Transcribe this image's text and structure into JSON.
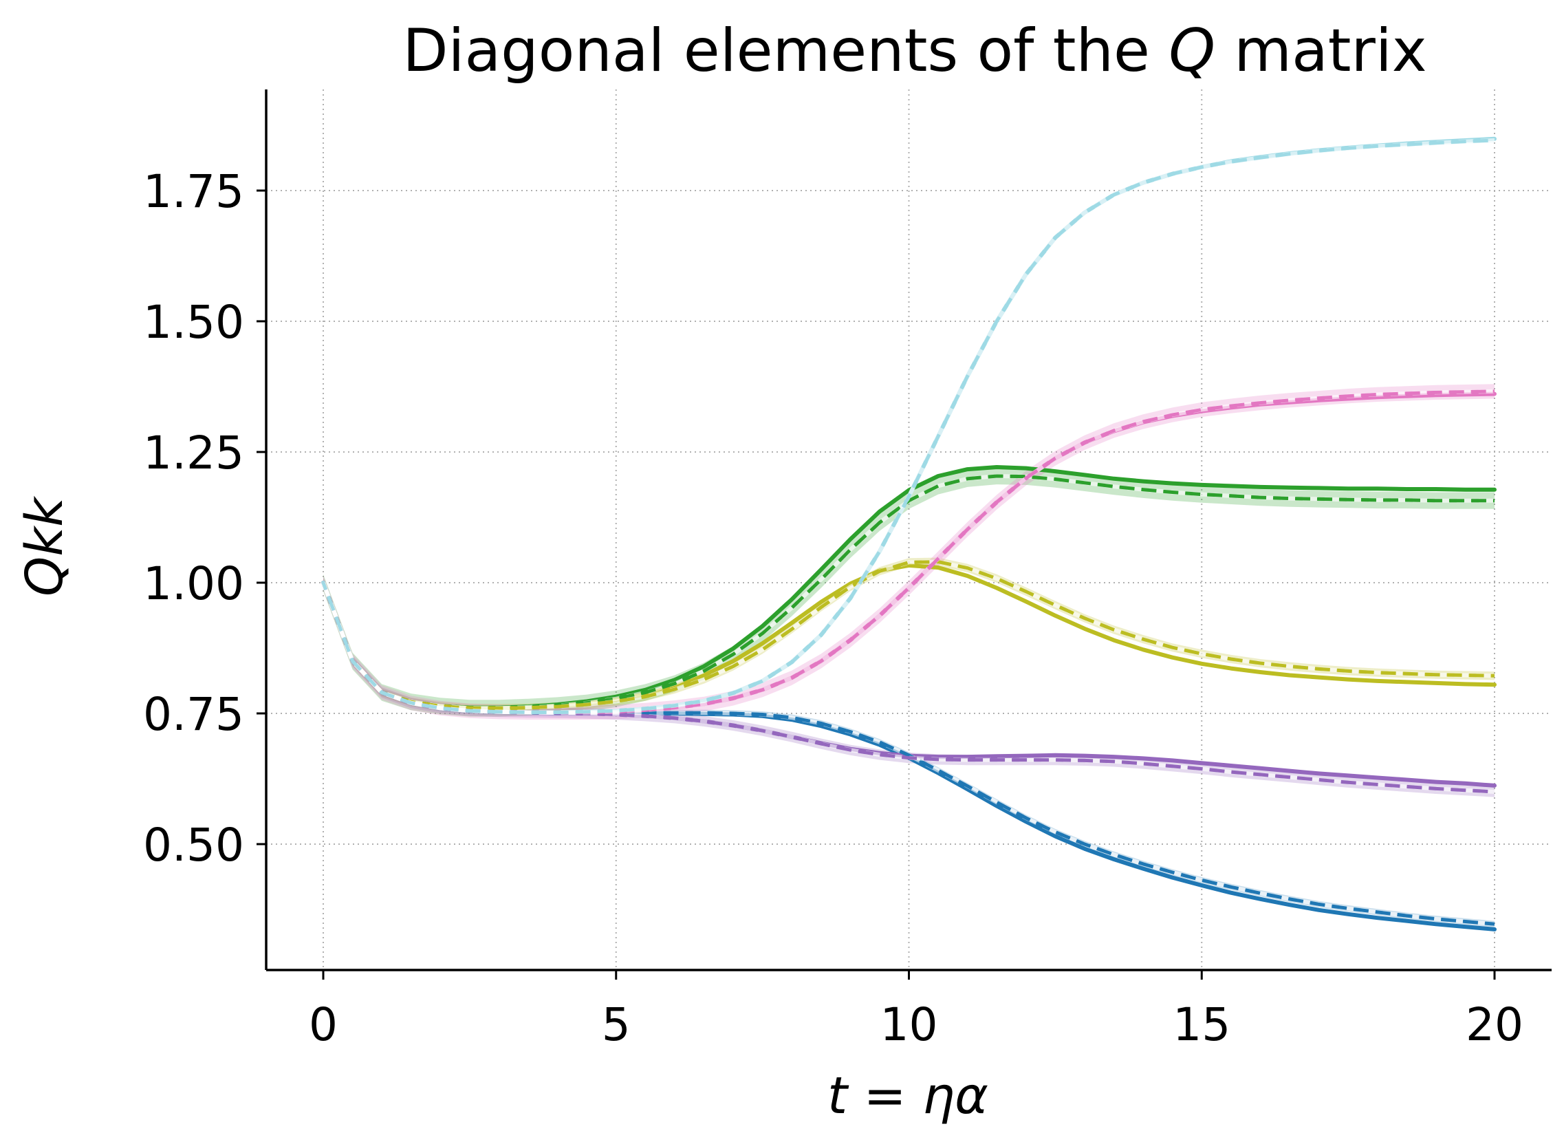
{
  "chart_data": {
    "type": "line",
    "title": "Diagonal elements of the Q matrix",
    "title_parts": [
      "Diagonal elements of the ",
      "Q",
      " matrix"
    ],
    "xlabel": "t = ηα",
    "ylabel": "Qkk",
    "xlim": [
      -1,
      21
    ],
    "ylim": [
      0.31,
      1.93
    ],
    "x_ticks": [
      0,
      5,
      10,
      15,
      20
    ],
    "x_tick_labels": [
      "0",
      "5",
      "10",
      "15",
      "20"
    ],
    "y_ticks": [
      0.5,
      0.75,
      1.0,
      1.25,
      1.5,
      1.75
    ],
    "y_tick_labels": [
      "0.50",
      "0.75",
      "1.00",
      "1.25",
      "1.50",
      "1.75"
    ],
    "grid": true,
    "grid_style": "dotted",
    "legend": false,
    "x": [
      0,
      0.5,
      1,
      1.5,
      2,
      2.5,
      3,
      3.5,
      4,
      4.5,
      5,
      5.5,
      6,
      6.5,
      7,
      7.5,
      8,
      8.5,
      9,
      9.5,
      10,
      10.5,
      11,
      11.5,
      12,
      12.5,
      13,
      13.5,
      14,
      14.5,
      15,
      15.5,
      16,
      16.5,
      17,
      17.5,
      18,
      18.5,
      19,
      19.5,
      20
    ],
    "series": [
      {
        "color": "#1f77b4",
        "solid": [
          1.0,
          0.85,
          0.79,
          0.77,
          0.76,
          0.755,
          0.753,
          0.752,
          0.751,
          0.751,
          0.75,
          0.75,
          0.75,
          0.749,
          0.748,
          0.745,
          0.738,
          0.726,
          0.71,
          0.69,
          0.665,
          0.636,
          0.605,
          0.573,
          0.543,
          0.515,
          0.491,
          0.471,
          0.453,
          0.436,
          0.421,
          0.407,
          0.395,
          0.384,
          0.374,
          0.366,
          0.359,
          0.353,
          0.347,
          0.342,
          0.337
        ],
        "dashed": [
          1.0,
          0.85,
          0.79,
          0.77,
          0.76,
          0.755,
          0.753,
          0.752,
          0.751,
          0.751,
          0.751,
          0.751,
          0.751,
          0.751,
          0.75,
          0.748,
          0.742,
          0.731,
          0.715,
          0.695,
          0.67,
          0.641,
          0.611,
          0.58,
          0.55,
          0.523,
          0.5,
          0.48,
          0.462,
          0.446,
          0.431,
          0.418,
          0.406,
          0.395,
          0.385,
          0.377,
          0.37,
          0.363,
          0.357,
          0.352,
          0.347
        ],
        "band": 0.006
      },
      {
        "color": "#2ca02c",
        "solid": [
          1.0,
          0.85,
          0.79,
          0.772,
          0.764,
          0.761,
          0.761,
          0.763,
          0.767,
          0.773,
          0.782,
          0.795,
          0.814,
          0.84,
          0.874,
          0.917,
          0.968,
          1.025,
          1.083,
          1.136,
          1.177,
          1.204,
          1.217,
          1.221,
          1.219,
          1.213,
          1.206,
          1.199,
          1.194,
          1.19,
          1.187,
          1.185,
          1.183,
          1.182,
          1.181,
          1.18,
          1.18,
          1.179,
          1.179,
          1.178,
          1.178
        ],
        "dashed": [
          1.0,
          0.85,
          0.79,
          0.772,
          0.764,
          0.76,
          0.76,
          0.762,
          0.765,
          0.77,
          0.778,
          0.79,
          0.807,
          0.831,
          0.863,
          0.903,
          0.952,
          1.006,
          1.063,
          1.115,
          1.157,
          1.185,
          1.199,
          1.204,
          1.203,
          1.198,
          1.191,
          1.184,
          1.178,
          1.173,
          1.169,
          1.166,
          1.163,
          1.161,
          1.16,
          1.159,
          1.158,
          1.158,
          1.157,
          1.157,
          1.157
        ],
        "band": 0.016
      },
      {
        "color": "#bcbd22",
        "solid": [
          1.0,
          0.85,
          0.79,
          0.772,
          0.764,
          0.76,
          0.76,
          0.761,
          0.764,
          0.769,
          0.776,
          0.787,
          0.802,
          0.823,
          0.85,
          0.884,
          0.923,
          0.963,
          0.998,
          1.023,
          1.033,
          1.029,
          1.013,
          0.99,
          0.964,
          0.937,
          0.912,
          0.89,
          0.872,
          0.857,
          0.845,
          0.836,
          0.829,
          0.823,
          0.819,
          0.815,
          0.812,
          0.81,
          0.808,
          0.806,
          0.805
        ],
        "dashed": [
          1.0,
          0.85,
          0.79,
          0.772,
          0.764,
          0.76,
          0.76,
          0.761,
          0.763,
          0.767,
          0.773,
          0.782,
          0.796,
          0.815,
          0.84,
          0.872,
          0.911,
          0.953,
          0.992,
          1.022,
          1.039,
          1.04,
          1.028,
          1.008,
          0.983,
          0.957,
          0.932,
          0.91,
          0.892,
          0.876,
          0.864,
          0.854,
          0.846,
          0.84,
          0.835,
          0.831,
          0.828,
          0.826,
          0.824,
          0.823,
          0.822
        ],
        "band": 0.008
      },
      {
        "color": "#9467bd",
        "solid": [
          1.0,
          0.85,
          0.79,
          0.77,
          0.76,
          0.755,
          0.753,
          0.752,
          0.751,
          0.75,
          0.748,
          0.745,
          0.741,
          0.735,
          0.727,
          0.717,
          0.705,
          0.693,
          0.682,
          0.674,
          0.669,
          0.667,
          0.667,
          0.668,
          0.669,
          0.67,
          0.669,
          0.667,
          0.664,
          0.66,
          0.655,
          0.65,
          0.645,
          0.64,
          0.635,
          0.631,
          0.627,
          0.623,
          0.619,
          0.616,
          0.612
        ],
        "dashed": [
          1.0,
          0.85,
          0.79,
          0.77,
          0.76,
          0.755,
          0.753,
          0.752,
          0.751,
          0.75,
          0.748,
          0.745,
          0.741,
          0.735,
          0.727,
          0.717,
          0.705,
          0.692,
          0.68,
          0.671,
          0.665,
          0.662,
          0.661,
          0.661,
          0.661,
          0.661,
          0.66,
          0.658,
          0.654,
          0.649,
          0.644,
          0.638,
          0.633,
          0.628,
          0.623,
          0.618,
          0.614,
          0.61,
          0.606,
          0.603,
          0.6
        ],
        "band": 0.01
      },
      {
        "color": "#e377c2",
        "solid": [
          1.0,
          0.85,
          0.79,
          0.77,
          0.76,
          0.755,
          0.753,
          0.752,
          0.752,
          0.752,
          0.753,
          0.756,
          0.761,
          0.768,
          0.779,
          0.795,
          0.818,
          0.85,
          0.89,
          0.937,
          0.99,
          1.046,
          1.102,
          1.154,
          1.2,
          1.238,
          1.268,
          1.29,
          1.307,
          1.319,
          1.328,
          1.335,
          1.341,
          1.345,
          1.349,
          1.352,
          1.355,
          1.357,
          1.359,
          1.36,
          1.361
        ],
        "dashed": [
          1.0,
          0.85,
          0.79,
          0.77,
          0.76,
          0.755,
          0.753,
          0.752,
          0.752,
          0.752,
          0.753,
          0.756,
          0.761,
          0.768,
          0.779,
          0.795,
          0.818,
          0.85,
          0.89,
          0.937,
          0.99,
          1.046,
          1.102,
          1.154,
          1.2,
          1.238,
          1.268,
          1.291,
          1.308,
          1.321,
          1.331,
          1.338,
          1.344,
          1.349,
          1.353,
          1.357,
          1.36,
          1.362,
          1.364,
          1.365,
          1.366
        ],
        "band": 0.014
      },
      {
        "color": "#9edae5",
        "solid": [
          1.0,
          0.85,
          0.79,
          0.77,
          0.76,
          0.755,
          0.753,
          0.752,
          0.752,
          0.753,
          0.755,
          0.759,
          0.765,
          0.774,
          0.789,
          0.812,
          0.848,
          0.9,
          0.97,
          1.06,
          1.165,
          1.28,
          1.395,
          1.5,
          1.59,
          1.66,
          1.708,
          1.742,
          1.765,
          1.782,
          1.795,
          1.806,
          1.814,
          1.821,
          1.827,
          1.832,
          1.836,
          1.84,
          1.843,
          1.846,
          1.849
        ],
        "dashed": [
          1.0,
          0.85,
          0.79,
          0.77,
          0.76,
          0.755,
          0.753,
          0.752,
          0.752,
          0.753,
          0.755,
          0.759,
          0.765,
          0.774,
          0.789,
          0.812,
          0.848,
          0.9,
          0.97,
          1.06,
          1.165,
          1.28,
          1.395,
          1.5,
          1.59,
          1.66,
          1.708,
          1.742,
          1.765,
          1.782,
          1.795,
          1.805,
          1.813,
          1.82,
          1.826,
          1.831,
          1.835,
          1.838,
          1.841,
          1.844,
          1.846
        ],
        "band": 0.004
      }
    ]
  }
}
